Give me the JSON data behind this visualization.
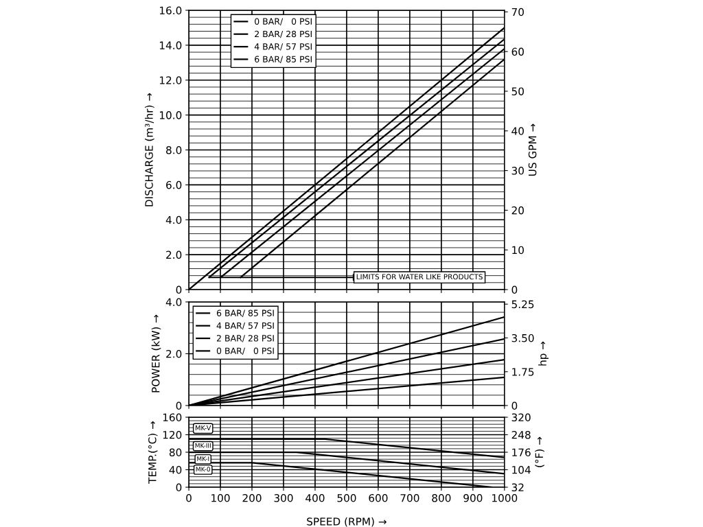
{
  "chart_data": [
    {
      "type": "line",
      "ylabel": "DISCHARGE (m³/hr) →",
      "y2label": "US GPM →",
      "xlim": [
        0,
        1000
      ],
      "xticks": [
        0,
        100,
        200,
        300,
        400,
        500,
        600,
        700,
        800,
        900,
        1000
      ],
      "ylim": [
        0,
        16
      ],
      "yticks": [
        0,
        {
          "value": 2,
          "label": "2.0"
        },
        {
          "value": 4,
          "label": "4.0"
        },
        {
          "value": 6,
          "label": "6.0"
        },
        {
          "value": 8,
          "label": "8.0"
        },
        {
          "value": 10,
          "label": "10.0"
        },
        {
          "value": 12,
          "label": "12.0"
        },
        {
          "value": 14,
          "label": "14.0"
        },
        {
          "value": 16,
          "label": "16.0"
        }
      ],
      "y2lim": [
        0,
        70.4
      ],
      "y2ticks": [
        0,
        10,
        20,
        30,
        40,
        50,
        60,
        70
      ],
      "tick_labels": "y",
      "grid": true,
      "legend": "top left",
      "series": [
        {
          "name": "0 BAR/   0 PSI",
          "color": "#000000",
          "x": [
            0,
            1000
          ],
          "values": [
            0,
            15.0
          ]
        },
        {
          "name": "2 BAR/ 28 PSI",
          "color": "#000000",
          "x": [
            64,
            1000
          ],
          "values": [
            0.7,
            14.35
          ]
        },
        {
          "name": "4 BAR/ 57 PSI",
          "color": "#000000",
          "x": [
            101,
            1000
          ],
          "values": [
            0.7,
            13.8
          ]
        },
        {
          "name": "6 BAR/ 85 PSI",
          "color": "#000000",
          "x": [
            164,
            1000
          ],
          "values": [
            0.7,
            13.2
          ]
        }
      ],
      "ref_lines": [
        {
          "axis": "y",
          "value": 0.7,
          "label": "LIMITS FOR WATER LIKE PRODUCTS"
        }
      ]
    },
    {
      "type": "line",
      "ylabel": "POWER (kW) →",
      "y2label": "hp →",
      "xlim": [
        0,
        1000
      ],
      "xticks": [
        0,
        100,
        200,
        300,
        400,
        500,
        600,
        700,
        800,
        900,
        1000
      ],
      "ylim": [
        0,
        4
      ],
      "yticks": [
        0,
        {
          "value": 2,
          "label": "2.0"
        },
        {
          "value": 4,
          "label": "4.0"
        }
      ],
      "y2lim": [
        0,
        5.364
      ],
      "y2ticks": [
        0,
        1.75,
        {
          "value": 3.5,
          "label": "3.50"
        },
        5.25
      ],
      "tick_labels": "y",
      "grid": true,
      "legend": "top left",
      "series": [
        {
          "name": "6 BAR/ 85 PSI",
          "color": "#000000",
          "x": [
            0,
            1000
          ],
          "values": [
            0,
            3.42
          ]
        },
        {
          "name": "4 BAR/ 57 PSI",
          "color": "#000000",
          "x": [
            0,
            1000
          ],
          "values": [
            0,
            2.57
          ]
        },
        {
          "name": "2 BAR/ 28 PSI",
          "color": "#000000",
          "x": [
            0,
            1000
          ],
          "values": [
            0,
            1.77
          ]
        },
        {
          "name": "0 BAR/   0 PSI",
          "color": "#000000",
          "x": [
            0,
            1000
          ],
          "values": [
            0,
            1.09
          ]
        }
      ]
    },
    {
      "type": "line",
      "ylabel": "TEMP.(°C) →",
      "y2label": "(°F) →",
      "xlabel": "SPEED (RPM) →",
      "xlim": [
        0,
        1000
      ],
      "xticks": [
        0,
        100,
        200,
        300,
        400,
        500,
        600,
        700,
        800,
        900,
        1000
      ],
      "ylim": [
        0,
        160
      ],
      "yticks": [
        0,
        40,
        80,
        120,
        160
      ],
      "y2lim": [
        32,
        320
      ],
      "y2ticks": [
        32,
        104,
        176,
        248,
        320
      ],
      "grid": true,
      "series": [
        {
          "name": "MK-III",
          "color": "#000000",
          "x": [
            0,
            431,
            1000
          ],
          "values": [
            110,
            110,
            68
          ]
        },
        {
          "name": "MK-I",
          "color": "#000000",
          "x": [
            0,
            341,
            1000
          ],
          "values": [
            80,
            80,
            31
          ]
        },
        {
          "name": "MK-0",
          "color": "#000000",
          "x": [
            0,
            200,
            960
          ],
          "values": [
            56,
            56,
            0
          ]
        }
      ],
      "legend": "left",
      "annotations": [
        "MK-V"
      ]
    }
  ]
}
